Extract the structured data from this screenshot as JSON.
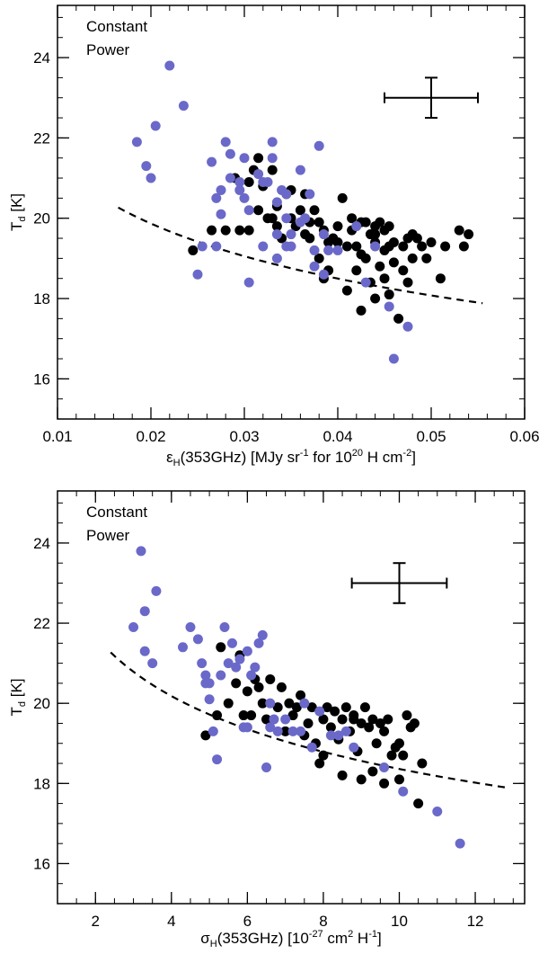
{
  "chart_data": [
    {
      "type": "scatter",
      "annotation_lines": [
        "Constant",
        "Power"
      ],
      "xlabel": {
        "main": "ε",
        "sub": "H",
        "rest1": "(353GHz) [MJy sr",
        "sup1": "-1",
        "rest2": " for 10",
        "sup2": "20",
        "rest3": " H cm",
        "sup3": "-2",
        "rest4": "]"
      },
      "ylabel": {
        "main": "T",
        "sub": "d",
        "rest": " [K]"
      },
      "xlim": [
        0.01,
        0.06
      ],
      "ylim": [
        15,
        25.3
      ],
      "xticks": [
        0.01,
        0.02,
        0.03,
        0.04,
        0.05,
        0.06
      ],
      "xtick_labels": [
        "0.01",
        "0.02",
        "0.03",
        "0.04",
        "0.05",
        "0.06"
      ],
      "yticks": [
        16,
        18,
        20,
        22,
        24
      ],
      "ytick_labels": [
        "16",
        "18",
        "20",
        "22",
        "24"
      ],
      "x_minor_step": 0.002,
      "y_minor_step": 0.5,
      "error_bar": {
        "x": 0.05,
        "y": 23.0,
        "xerr": 0.005,
        "yerr": 0.5
      },
      "constant_power_curve": {
        "x0": 0.0165,
        "x1": 0.0555,
        "beta": 5.7,
        "anchor_x": 0.055,
        "anchor_y": 17.9
      },
      "series": [
        {
          "name": "black",
          "color": "#000000",
          "points": [
            [
              0.0245,
              19.2
            ],
            [
              0.0265,
              19.7
            ],
            [
              0.028,
              19.7
            ],
            [
              0.029,
              21.0
            ],
            [
              0.0295,
              19.7
            ],
            [
              0.0305,
              19.7
            ],
            [
              0.031,
              21.2
            ],
            [
              0.0315,
              21.5
            ],
            [
              0.0315,
              20.2
            ],
            [
              0.032,
              20.8
            ],
            [
              0.0325,
              20.0
            ],
            [
              0.033,
              20.0
            ],
            [
              0.033,
              21.2
            ],
            [
              0.0335,
              20.3
            ],
            [
              0.034,
              19.5
            ],
            [
              0.0345,
              20.6
            ],
            [
              0.035,
              20.7
            ],
            [
              0.035,
              20.0
            ],
            [
              0.0355,
              19.8
            ],
            [
              0.036,
              20.2
            ],
            [
              0.0365,
              19.6
            ],
            [
              0.037,
              19.9
            ],
            [
              0.037,
              19.5
            ],
            [
              0.0375,
              20.2
            ],
            [
              0.038,
              19.9
            ],
            [
              0.038,
              19.0
            ],
            [
              0.0385,
              18.5
            ],
            [
              0.039,
              19.4
            ],
            [
              0.039,
              18.7
            ],
            [
              0.0395,
              19.5
            ],
            [
              0.04,
              19.8
            ],
            [
              0.04,
              19.4
            ],
            [
              0.0405,
              20.5
            ],
            [
              0.041,
              19.3
            ],
            [
              0.041,
              18.2
            ],
            [
              0.0415,
              19.7
            ],
            [
              0.042,
              19.3
            ],
            [
              0.042,
              18.7
            ],
            [
              0.0425,
              19.9
            ],
            [
              0.0425,
              19.1
            ],
            [
              0.043,
              19.9
            ],
            [
              0.043,
              19.0
            ],
            [
              0.0435,
              19.6
            ],
            [
              0.0435,
              18.4
            ],
            [
              0.044,
              19.8
            ],
            [
              0.044,
              19.4
            ],
            [
              0.044,
              18.0
            ],
            [
              0.0445,
              19.9
            ],
            [
              0.0445,
              18.8
            ],
            [
              0.045,
              19.7
            ],
            [
              0.045,
              19.2
            ],
            [
              0.045,
              18.5
            ],
            [
              0.0455,
              19.8
            ],
            [
              0.0455,
              18.1
            ],
            [
              0.046,
              19.4
            ],
            [
              0.046,
              18.9
            ],
            [
              0.0465,
              17.5
            ],
            [
              0.047,
              19.3
            ],
            [
              0.047,
              18.7
            ],
            [
              0.0475,
              19.5
            ],
            [
              0.0475,
              18.4
            ],
            [
              0.048,
              19.6
            ],
            [
              0.048,
              19.0
            ],
            [
              0.0485,
              19.5
            ],
            [
              0.049,
              19.3
            ],
            [
              0.0495,
              19.0
            ],
            [
              0.05,
              19.4
            ],
            [
              0.051,
              18.5
            ],
            [
              0.0515,
              19.3
            ],
            [
              0.053,
              19.7
            ],
            [
              0.0535,
              19.3
            ],
            [
              0.054,
              19.6
            ],
            [
              0.0425,
              17.7
            ],
            [
              0.044,
              19.6
            ],
            [
              0.0385,
              19.7
            ],
            [
              0.0335,
              19.8
            ],
            [
              0.0305,
              20.9
            ],
            [
              0.0365,
              20.6
            ],
            [
              0.0455,
              19.3
            ],
            [
              0.0415,
              20.0
            ]
          ]
        },
        {
          "name": "blue",
          "color": "#6a69c9",
          "points": [
            [
              0.0185,
              21.9
            ],
            [
              0.0195,
              21.3
            ],
            [
              0.02,
              21.0
            ],
            [
              0.0205,
              22.3
            ],
            [
              0.022,
              23.8
            ],
            [
              0.0235,
              22.8
            ],
            [
              0.025,
              18.6
            ],
            [
              0.0255,
              19.3
            ],
            [
              0.0265,
              21.4
            ],
            [
              0.027,
              20.5
            ],
            [
              0.0275,
              20.7
            ],
            [
              0.0275,
              20.1
            ],
            [
              0.027,
              19.3
            ],
            [
              0.028,
              21.9
            ],
            [
              0.0285,
              21.6
            ],
            [
              0.0285,
              21.0
            ],
            [
              0.0295,
              20.9
            ],
            [
              0.03,
              21.5
            ],
            [
              0.03,
              20.5
            ],
            [
              0.0305,
              18.4
            ],
            [
              0.0315,
              21.1
            ],
            [
              0.032,
              20.9
            ],
            [
              0.032,
              19.3
            ],
            [
              0.0325,
              20.9
            ],
            [
              0.033,
              21.9
            ],
            [
              0.033,
              21.5
            ],
            [
              0.0335,
              20.4
            ],
            [
              0.0335,
              19.6
            ],
            [
              0.034,
              20.7
            ],
            [
              0.0345,
              20.0
            ],
            [
              0.0345,
              19.3
            ],
            [
              0.035,
              19.6
            ],
            [
              0.035,
              19.3
            ],
            [
              0.036,
              19.9
            ],
            [
              0.036,
              21.2
            ],
            [
              0.0365,
              20.0
            ],
            [
              0.037,
              20.6
            ],
            [
              0.0375,
              19.2
            ],
            [
              0.0375,
              18.8
            ],
            [
              0.038,
              21.8
            ],
            [
              0.0385,
              19.6
            ],
            [
              0.0385,
              18.6
            ],
            [
              0.039,
              19.2
            ],
            [
              0.04,
              19.2
            ],
            [
              0.042,
              19.8
            ],
            [
              0.043,
              18.4
            ],
            [
              0.044,
              19.3
            ],
            [
              0.0455,
              17.8
            ],
            [
              0.046,
              16.5
            ],
            [
              0.0475,
              17.3
            ],
            [
              0.0335,
              19.0
            ],
            [
              0.0345,
              20.6
            ],
            [
              0.0295,
              20.7
            ],
            [
              0.0305,
              20.2
            ]
          ]
        }
      ]
    },
    {
      "type": "scatter",
      "annotation_lines": [
        "Constant",
        "Power"
      ],
      "xlabel": {
        "main": "σ",
        "sub": "H",
        "rest1": "(353GHz) [10",
        "sup1": "-27",
        "rest2": " cm",
        "sup2": "2",
        "rest3": " H",
        "sup3": "-1",
        "rest4": "]"
      },
      "ylabel": {
        "main": "T",
        "sub": "d",
        "rest": " [K]"
      },
      "xlim": [
        1,
        13.3
      ],
      "ylim": [
        15,
        25.3
      ],
      "xticks": [
        2,
        4,
        6,
        8,
        10,
        12
      ],
      "xtick_labels": [
        "2",
        "4",
        "6",
        "8",
        "10",
        "12"
      ],
      "yticks": [
        16,
        18,
        20,
        22,
        24
      ],
      "ytick_labels": [
        "16",
        "18",
        "20",
        "22",
        "24"
      ],
      "x_minor_step": 0.5,
      "y_minor_step": 0.5,
      "error_bar": {
        "x": 10.0,
        "y": 23.0,
        "xerr": 1.25,
        "yerr": 0.5
      },
      "constant_power_curve": {
        "x0": 2.4,
        "x1": 12.8,
        "beta": 5.7,
        "anchor_x": 12.8,
        "anchor_y": 17.9
      },
      "series": [
        {
          "name": "black",
          "color": "#000000",
          "points": [
            [
              4.9,
              19.2
            ],
            [
              5.2,
              19.7
            ],
            [
              5.3,
              21.4
            ],
            [
              5.5,
              20.0
            ],
            [
              5.7,
              20.5
            ],
            [
              5.8,
              21.2
            ],
            [
              5.9,
              19.7
            ],
            [
              6.0,
              20.3
            ],
            [
              6.2,
              20.6
            ],
            [
              6.4,
              20.0
            ],
            [
              6.5,
              19.6
            ],
            [
              6.6,
              20.6
            ],
            [
              6.8,
              19.9
            ],
            [
              6.9,
              20.4
            ],
            [
              7.0,
              19.3
            ],
            [
              7.1,
              20.0
            ],
            [
              7.2,
              19.7
            ],
            [
              7.4,
              20.2
            ],
            [
              7.5,
              19.2
            ],
            [
              7.6,
              19.5
            ],
            [
              7.7,
              19.9
            ],
            [
              7.8,
              19.0
            ],
            [
              7.9,
              18.5
            ],
            [
              8.0,
              19.6
            ],
            [
              8.0,
              18.7
            ],
            [
              8.1,
              19.9
            ],
            [
              8.2,
              19.4
            ],
            [
              8.3,
              19.8
            ],
            [
              8.4,
              19.1
            ],
            [
              8.5,
              19.6
            ],
            [
              8.5,
              18.2
            ],
            [
              8.6,
              19.9
            ],
            [
              8.7,
              19.3
            ],
            [
              8.8,
              19.7
            ],
            [
              8.9,
              18.8
            ],
            [
              9.0,
              19.5
            ],
            [
              9.0,
              18.1
            ],
            [
              9.1,
              19.9
            ],
            [
              9.2,
              19.4
            ],
            [
              9.3,
              19.6
            ],
            [
              9.3,
              18.3
            ],
            [
              9.4,
              19.0
            ],
            [
              9.5,
              19.5
            ],
            [
              9.6,
              19.3
            ],
            [
              9.7,
              19.6
            ],
            [
              9.8,
              18.7
            ],
            [
              9.9,
              18.9
            ],
            [
              10.0,
              19.0
            ],
            [
              10.0,
              18.1
            ],
            [
              10.1,
              18.7
            ],
            [
              10.2,
              19.7
            ],
            [
              10.3,
              19.4
            ],
            [
              10.4,
              19.5
            ],
            [
              10.6,
              18.5
            ],
            [
              10.5,
              17.5
            ],
            [
              6.1,
              19.7
            ],
            [
              7.3,
              19.9
            ],
            [
              8.8,
              19.6
            ],
            [
              9.6,
              18.0
            ],
            [
              6.3,
              20.4
            ]
          ]
        },
        {
          "name": "blue",
          "color": "#6a69c9",
          "points": [
            [
              3.0,
              21.9
            ],
            [
              3.2,
              23.8
            ],
            [
              3.3,
              22.3
            ],
            [
              3.3,
              21.3
            ],
            [
              3.5,
              21.0
            ],
            [
              3.6,
              22.8
            ],
            [
              4.3,
              21.4
            ],
            [
              4.5,
              21.9
            ],
            [
              4.7,
              21.6
            ],
            [
              4.8,
              21.0
            ],
            [
              4.9,
              20.7
            ],
            [
              5.0,
              20.5
            ],
            [
              5.0,
              20.1
            ],
            [
              5.1,
              19.3
            ],
            [
              5.2,
              18.6
            ],
            [
              5.4,
              21.9
            ],
            [
              5.5,
              21.0
            ],
            [
              5.6,
              21.5
            ],
            [
              5.7,
              20.9
            ],
            [
              5.8,
              21.1
            ],
            [
              6.0,
              21.3
            ],
            [
              6.0,
              19.4
            ],
            [
              6.1,
              20.7
            ],
            [
              6.3,
              21.5
            ],
            [
              6.4,
              21.7
            ],
            [
              6.5,
              18.4
            ],
            [
              6.6,
              20.0
            ],
            [
              6.7,
              19.6
            ],
            [
              6.8,
              19.3
            ],
            [
              7.0,
              19.6
            ],
            [
              7.2,
              19.3
            ],
            [
              7.4,
              19.3
            ],
            [
              7.7,
              18.9
            ],
            [
              7.9,
              19.8
            ],
            [
              8.2,
              19.2
            ],
            [
              8.4,
              19.2
            ],
            [
              8.8,
              18.9
            ],
            [
              9.6,
              18.4
            ],
            [
              10.1,
              17.8
            ],
            [
              11.0,
              17.3
            ],
            [
              11.6,
              16.5
            ],
            [
              5.9,
              19.4
            ],
            [
              6.6,
              19.4
            ],
            [
              5.3,
              20.7
            ],
            [
              4.9,
              20.5
            ],
            [
              8.6,
              19.3
            ],
            [
              7.5,
              20.0
            ],
            [
              6.2,
              20.9
            ]
          ]
        }
      ]
    }
  ]
}
